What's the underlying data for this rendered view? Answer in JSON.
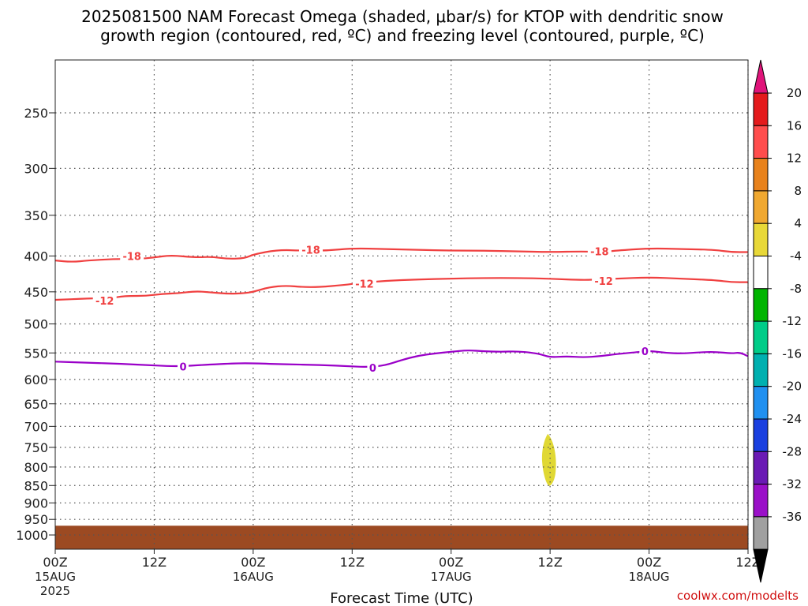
{
  "title": {
    "line1": "2025081500 NAM Forecast Omega (shaded, μbar/s) for KTOP with dendritic snow",
    "line2": "growth region (contoured, red, ºC) and freezing level (contoured, purple, ºC)"
  },
  "credit": "coolwx.com/modelts",
  "chart_data": {
    "type": "time-height",
    "xlabel": "Forecast Time (UTC)",
    "ylabel": "",
    "x_ticks": [
      {
        "hour": 0,
        "time": "00Z",
        "date": "15AUG",
        "year": "2025"
      },
      {
        "hour": 12,
        "time": "12Z",
        "date": "",
        "year": ""
      },
      {
        "hour": 24,
        "time": "00Z",
        "date": "16AUG",
        "year": ""
      },
      {
        "hour": 36,
        "time": "12Z",
        "date": "",
        "year": ""
      },
      {
        "hour": 48,
        "time": "00Z",
        "date": "17AUG",
        "year": ""
      },
      {
        "hour": 60,
        "time": "12Z",
        "date": "",
        "year": ""
      },
      {
        "hour": 72,
        "time": "00Z",
        "date": "18AUG",
        "year": ""
      },
      {
        "hour": 84,
        "time": "12Z",
        "date": "",
        "year": ""
      }
    ],
    "xlim": [
      0,
      84
    ],
    "y_scale": "log",
    "y_ticks": [
      250,
      300,
      350,
      400,
      450,
      500,
      550,
      600,
      650,
      700,
      750,
      800,
      850,
      900,
      950,
      1000
    ],
    "ylim": [
      1040,
      200
    ],
    "grid": true,
    "contours": [
      {
        "color": "#f04040",
        "labels": [
          {
            "text": "-18",
            "hour": 9.3,
            "level": 400
          },
          {
            "text": "-18",
            "hour": 31,
            "level": 392
          },
          {
            "text": "-18",
            "hour": 66,
            "level": 394
          }
        ],
        "points": [
          [
            0,
            406
          ],
          [
            2,
            408
          ],
          [
            4,
            406
          ],
          [
            7,
            404
          ],
          [
            10,
            404
          ],
          [
            12,
            402
          ],
          [
            14,
            399
          ],
          [
            17,
            402
          ],
          [
            19,
            401
          ],
          [
            21,
            404
          ],
          [
            23,
            403
          ],
          [
            24,
            398
          ],
          [
            27,
            392
          ],
          [
            30,
            393
          ],
          [
            33,
            393
          ],
          [
            36,
            390
          ],
          [
            40,
            391
          ],
          [
            44,
            392
          ],
          [
            48,
            393
          ],
          [
            52,
            393
          ],
          [
            56,
            394
          ],
          [
            60,
            395
          ],
          [
            64,
            394
          ],
          [
            66,
            395
          ],
          [
            68,
            393
          ],
          [
            72,
            390
          ],
          [
            76,
            391
          ],
          [
            80,
            392
          ],
          [
            82,
            395
          ],
          [
            84,
            395
          ]
        ]
      },
      {
        "color": "#f04040",
        "labels": [
          {
            "text": "-12",
            "hour": 6,
            "level": 463
          },
          {
            "text": "-12",
            "hour": 37.5,
            "level": 438
          },
          {
            "text": "-12",
            "hour": 66.5,
            "level": 434
          }
        ],
        "points": [
          [
            0,
            462
          ],
          [
            4,
            460
          ],
          [
            7,
            459
          ],
          [
            8,
            457
          ],
          [
            9,
            456
          ],
          [
            11,
            456
          ],
          [
            13,
            453
          ],
          [
            15,
            452
          ],
          [
            17,
            449
          ],
          [
            19,
            451
          ],
          [
            21,
            453
          ],
          [
            23,
            452
          ],
          [
            24,
            450
          ],
          [
            26,
            443
          ],
          [
            28,
            441
          ],
          [
            30,
            443
          ],
          [
            32,
            443
          ],
          [
            35,
            440
          ],
          [
            37,
            437
          ],
          [
            40,
            434
          ],
          [
            44,
            432
          ],
          [
            48,
            431
          ],
          [
            52,
            430
          ],
          [
            56,
            430
          ],
          [
            60,
            431
          ],
          [
            64,
            433
          ],
          [
            66,
            432
          ],
          [
            68,
            431
          ],
          [
            72,
            429
          ],
          [
            76,
            431
          ],
          [
            80,
            433
          ],
          [
            82,
            436
          ],
          [
            84,
            436
          ]
        ]
      },
      {
        "color": "#9a00c8",
        "labels": [
          {
            "text": "0",
            "hour": 15.5,
            "level": 575
          },
          {
            "text": "0",
            "hour": 38.5,
            "level": 577
          },
          {
            "text": "0",
            "hour": 71.5,
            "level": 547
          }
        ],
        "points": [
          [
            0,
            566
          ],
          [
            4,
            568
          ],
          [
            8,
            570
          ],
          [
            12,
            573
          ],
          [
            15,
            575
          ],
          [
            18,
            572
          ],
          [
            22,
            569
          ],
          [
            24,
            569
          ],
          [
            28,
            571
          ],
          [
            32,
            572
          ],
          [
            36,
            575
          ],
          [
            38,
            576
          ],
          [
            40,
            573
          ],
          [
            42,
            563
          ],
          [
            44,
            555
          ],
          [
            46,
            551
          ],
          [
            48,
            548
          ],
          [
            50,
            545
          ],
          [
            52,
            547
          ],
          [
            54,
            548
          ],
          [
            56,
            547
          ],
          [
            58,
            550
          ],
          [
            59,
            553
          ],
          [
            60,
            558
          ],
          [
            62,
            556
          ],
          [
            64,
            558
          ],
          [
            66,
            556
          ],
          [
            68,
            552
          ],
          [
            71,
            548
          ],
          [
            72,
            546
          ],
          [
            74,
            550
          ],
          [
            76,
            551
          ],
          [
            78,
            549
          ],
          [
            80,
            548
          ],
          [
            82,
            551
          ],
          [
            83,
            549
          ],
          [
            84,
            556
          ]
        ]
      }
    ],
    "shaded_regions": [
      {
        "name": "omega-positive-patch",
        "bin": "4 to 8",
        "color": "#e0d834",
        "center_hour": 60,
        "center_level": 800
      }
    ],
    "terrain": {
      "color": "#9c4a22",
      "top_level": 970
    },
    "colorbar": {
      "labels": [
        "20",
        "16",
        "12",
        "8",
        "4",
        "-4",
        "-8",
        "-12",
        "-16",
        "-20",
        "-24",
        "-28",
        "-32",
        "-36"
      ],
      "colors": [
        "#e41a1c",
        "#ff4d4d",
        "#e8821c",
        "#f0a830",
        "#e8d838",
        "#ffffff",
        "#00b400",
        "#00cc88",
        "#00b0b0",
        "#2090f0",
        "#1a40e0",
        "#6a1ab4",
        "#9a10c8",
        "#a0a0a0"
      ],
      "top_arrow_color": "#e0147a",
      "bottom_arrow_color": "#000000"
    }
  }
}
